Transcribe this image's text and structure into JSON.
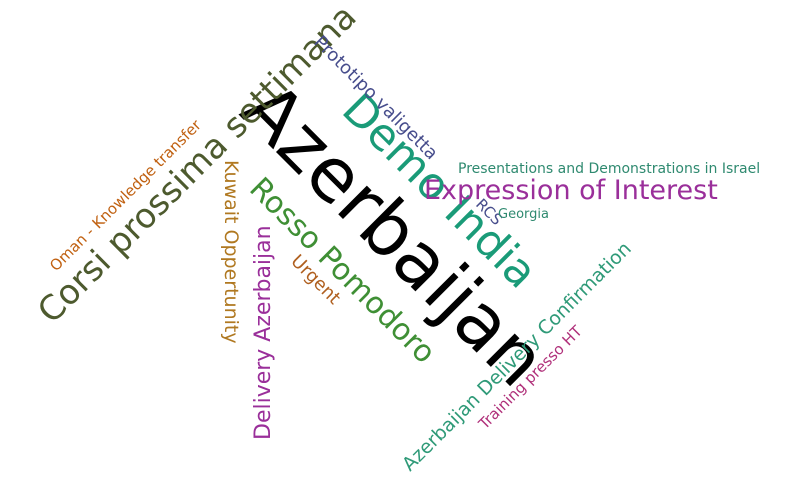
{
  "words": [
    {
      "id": "azerbaijan",
      "text": "Azerbaijan",
      "color": "#000000"
    },
    {
      "id": "demo-india",
      "text": "Demo India",
      "color": "#1a9b78"
    },
    {
      "id": "corsi",
      "text": "Corsi prossima settimana",
      "color": "#4d5a2e"
    },
    {
      "id": "expression",
      "text": "Expression of Interest",
      "color": "#9a2f9a"
    },
    {
      "id": "rosso",
      "text": "Rosso Pomodoro",
      "color": "#3f8f35"
    },
    {
      "id": "delivery-az",
      "text": "Delivery Azerbaijan",
      "color": "#9a2f9a"
    },
    {
      "id": "kuwait",
      "text": "Kuwait Oppertunity",
      "color": "#b07820"
    },
    {
      "id": "prototipo",
      "text": "Prototipo valigetta",
      "color": "#474d8c"
    },
    {
      "id": "urgent",
      "text": "Urgent",
      "color": "#b06020"
    },
    {
      "id": "oman",
      "text": "Oman - Knowledge transfer",
      "color": "#c06010"
    },
    {
      "id": "presentations",
      "text": "Presentations and Demonstrations in Israel",
      "color": "#2f8a70"
    },
    {
      "id": "az-delivery-conf",
      "text": "Azerbaijan Delivery Confirmation",
      "color": "#2f9a78"
    },
    {
      "id": "training",
      "text": "Training presso HT",
      "color": "#b0307a"
    },
    {
      "id": "rcs",
      "text": "RCS",
      "color": "#474d8c"
    },
    {
      "id": "georgia",
      "text": "Georgia",
      "color": "#2f8a70"
    }
  ]
}
